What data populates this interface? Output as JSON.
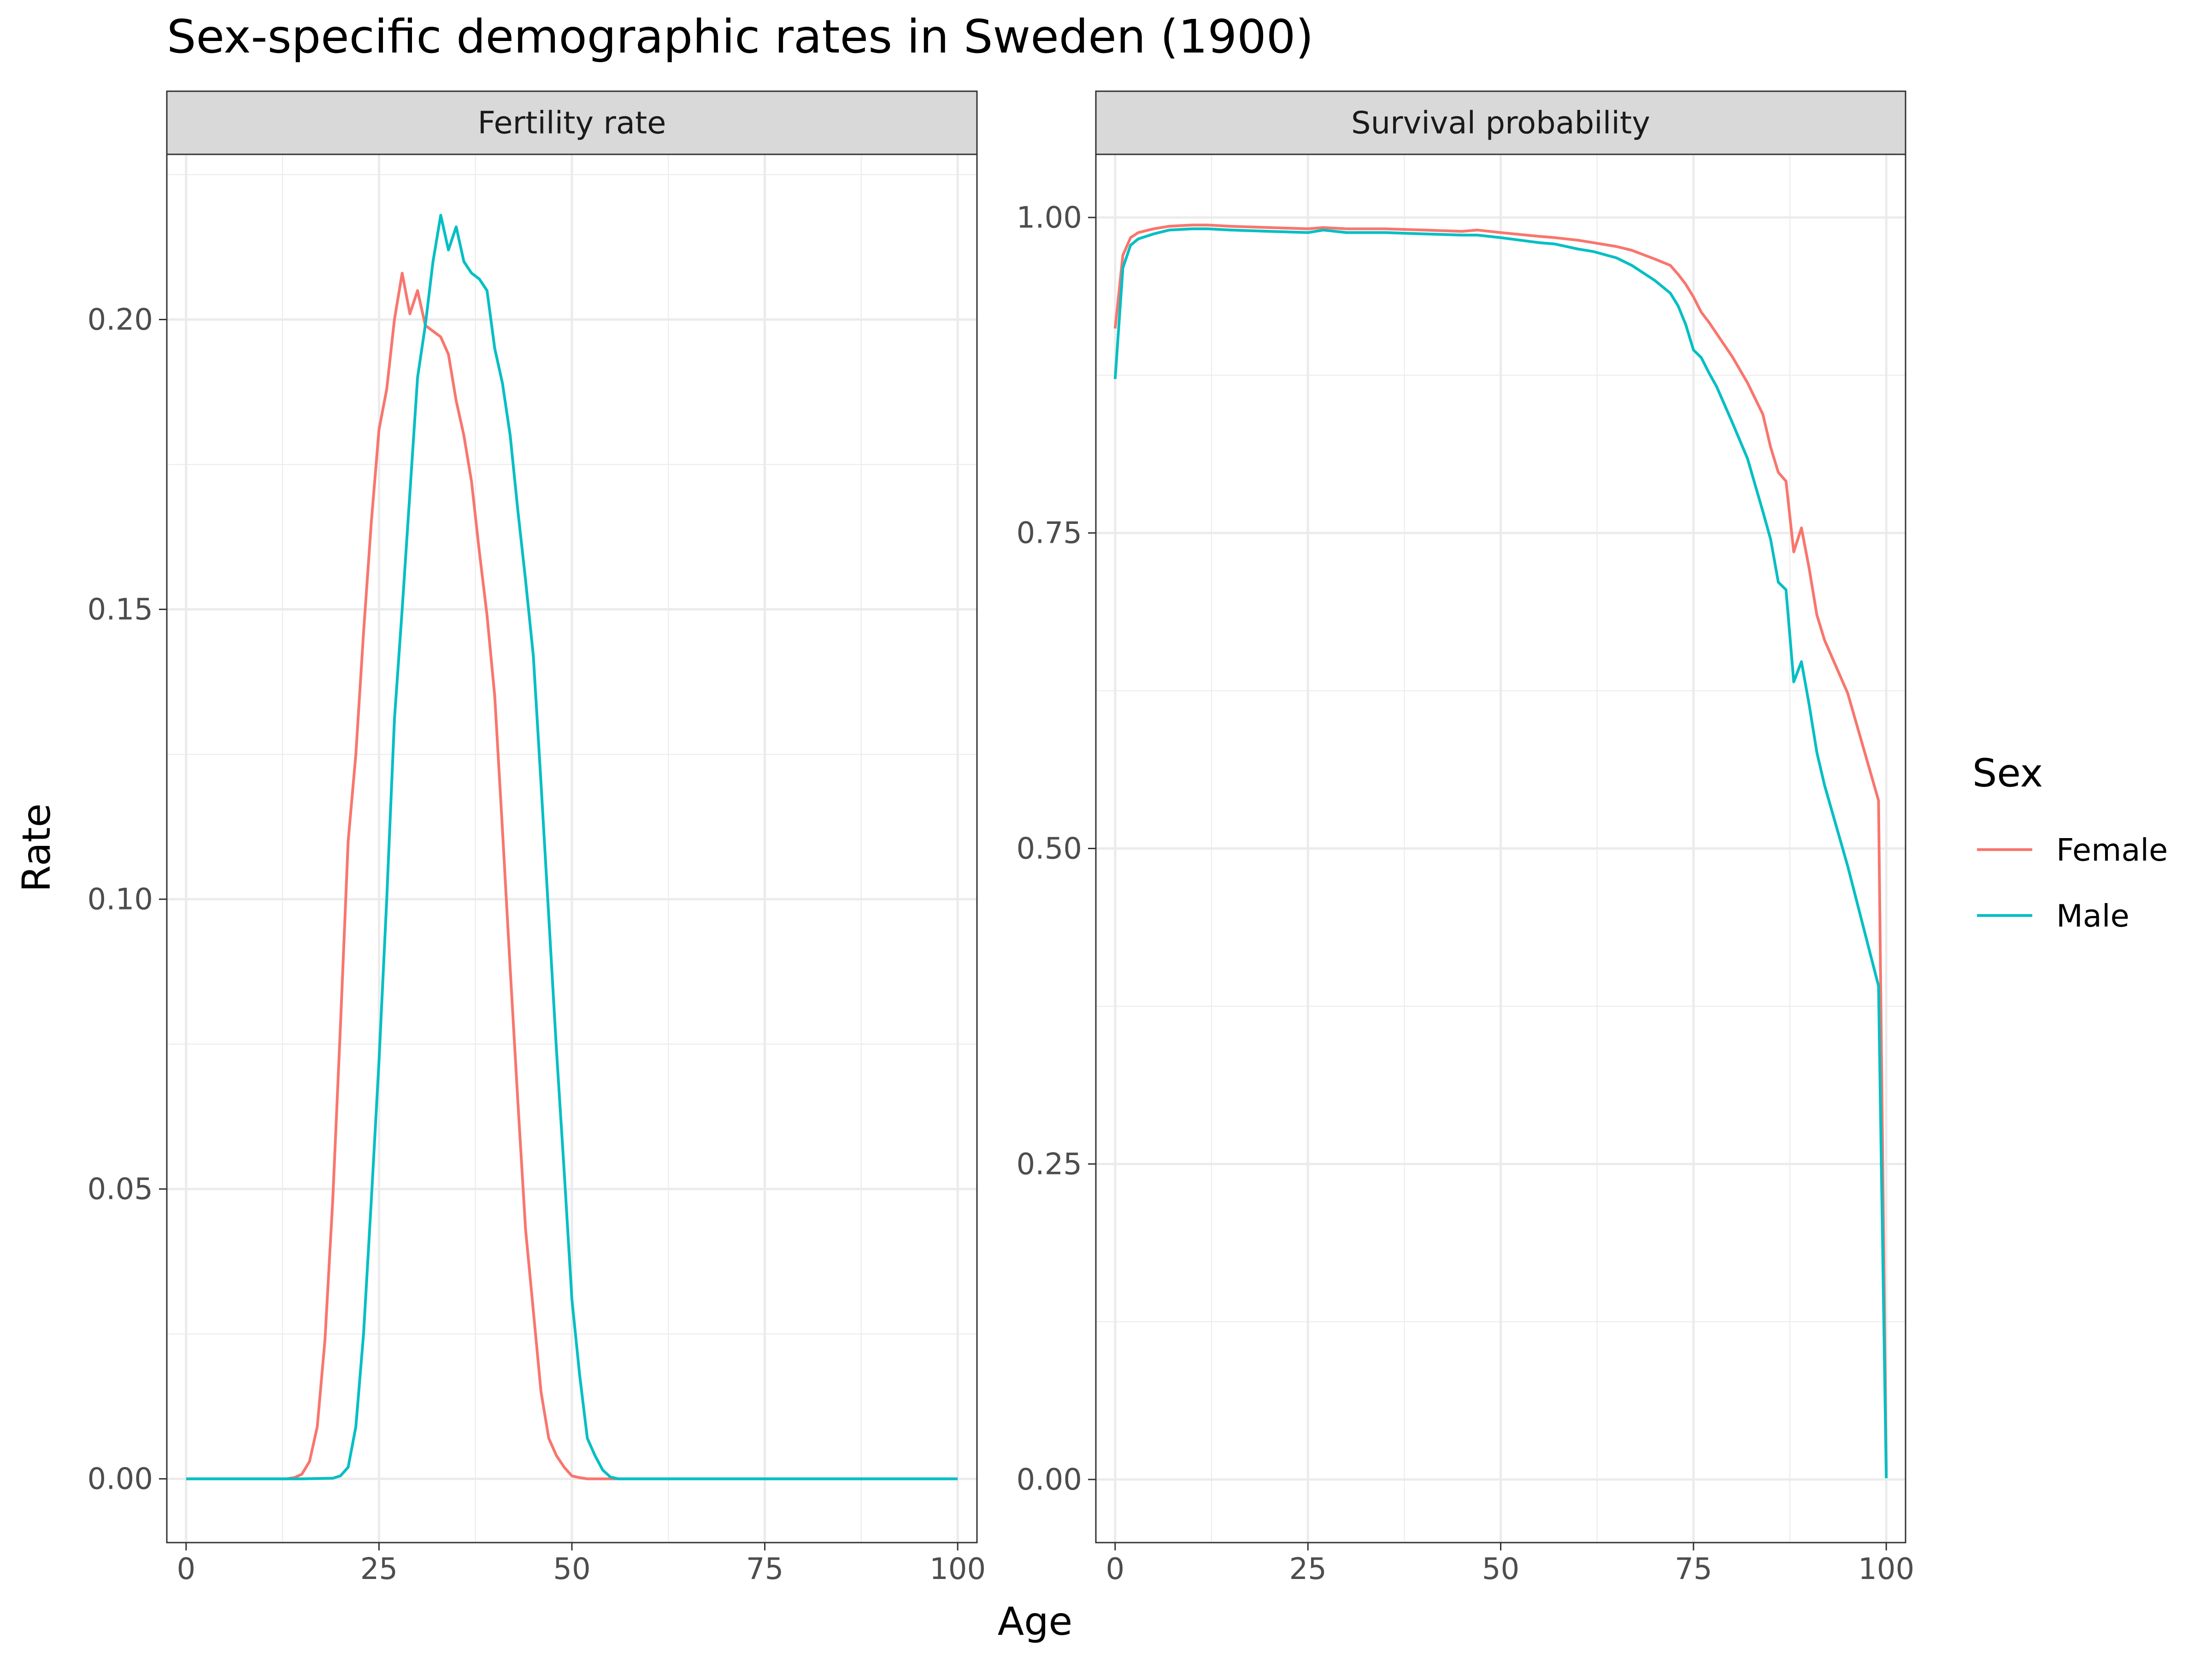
{
  "chart_data": {
    "type": "line",
    "title": "Sex-specific demographic rates in Sweden (1900)",
    "xlabel": "Age",
    "ylabel": "Rate",
    "legend": {
      "title": "Sex",
      "position": "right",
      "entries": [
        "Female",
        "Male"
      ]
    },
    "colors": {
      "Female": "#F8766D",
      "Male": "#00BFC4"
    },
    "grid": true,
    "x_ticks": [
      0,
      25,
      50,
      75,
      100
    ],
    "xlim": [
      -2.5,
      102.5
    ],
    "panels": [
      {
        "strip": "Fertility rate",
        "ylim": [
          -0.011,
          0.2285
        ],
        "y_ticks": [
          0,
          0.05,
          0.1,
          0.15,
          0.2
        ],
        "y_tick_labels": [
          "0.00",
          "0.05",
          "0.10",
          "0.15",
          "0.20"
        ],
        "series": [
          {
            "name": "Female",
            "x": [
              0,
              5,
              10,
              13,
              14,
              15,
              16,
              17,
              18,
              19,
              20,
              21,
              22,
              23,
              24,
              25,
              26,
              27,
              28,
              29,
              30,
              31,
              32,
              33,
              34,
              35,
              36,
              37,
              38,
              39,
              40,
              41,
              42,
              43,
              44,
              45,
              46,
              47,
              48,
              49,
              50,
              51,
              52,
              55,
              60,
              100
            ],
            "values": [
              0,
              0,
              0,
              0,
              0.0002,
              0.0008,
              0.003,
              0.009,
              0.024,
              0.048,
              0.078,
              0.11,
              0.125,
              0.146,
              0.165,
              0.181,
              0.188,
              0.2,
              0.208,
              0.201,
              0.205,
              0.199,
              0.198,
              0.197,
              0.194,
              0.186,
              0.18,
              0.172,
              0.16,
              0.149,
              0.135,
              0.112,
              0.088,
              0.065,
              0.043,
              0.029,
              0.015,
              0.007,
              0.004,
              0.002,
              0.0005,
              0.0002,
              0,
              0,
              0,
              0
            ]
          },
          {
            "name": "Male",
            "x": [
              0,
              5,
              10,
              15,
              19,
              20,
              21,
              22,
              23,
              24,
              25,
              26,
              27,
              28,
              29,
              30,
              31,
              32,
              33,
              34,
              35,
              36,
              37,
              38,
              39,
              40,
              41,
              42,
              43,
              44,
              45,
              46,
              47,
              48,
              49,
              50,
              51,
              52,
              53,
              54,
              55,
              56,
              60,
              100
            ],
            "values": [
              0,
              0,
              0,
              0,
              0.0001,
              0.0005,
              0.002,
              0.009,
              0.025,
              0.048,
              0.072,
              0.1,
              0.131,
              0.15,
              0.17,
              0.19,
              0.199,
              0.21,
              0.218,
              0.212,
              0.216,
              0.21,
              0.208,
              0.207,
              0.205,
              0.195,
              0.189,
              0.18,
              0.167,
              0.155,
              0.142,
              0.12,
              0.097,
              0.074,
              0.053,
              0.031,
              0.018,
              0.007,
              0.004,
              0.0015,
              0.0003,
              0,
              0,
              0
            ]
          }
        ]
      },
      {
        "strip": "Survival probability",
        "ylim": [
          -0.05,
          1.05
        ],
        "y_ticks": [
          0,
          0.25,
          0.5,
          0.75,
          1.0
        ],
        "y_tick_labels": [
          "0.00",
          "0.25",
          "0.50",
          "0.75",
          "1.00"
        ],
        "series": [
          {
            "name": "Female",
            "x": [
              0,
              1,
              2,
              3,
              5,
              7,
              10,
              12,
              15,
              20,
              25,
              27,
              30,
              35,
              40,
              45,
              47,
              50,
              55,
              57,
              60,
              62,
              65,
              67,
              70,
              72,
              73,
              74,
              75,
              76,
              77,
              78,
              80,
              82,
              84,
              85,
              86,
              87,
              88,
              89,
              90,
              91,
              92,
              95,
              99,
              100
            ],
            "values": [
              0.912,
              0.97,
              0.984,
              0.988,
              0.991,
              0.993,
              0.994,
              0.994,
              0.993,
              0.992,
              0.991,
              0.992,
              0.991,
              0.991,
              0.99,
              0.989,
              0.99,
              0.988,
              0.985,
              0.984,
              0.982,
              0.98,
              0.977,
              0.974,
              0.967,
              0.962,
              0.955,
              0.947,
              0.937,
              0.925,
              0.917,
              0.908,
              0.89,
              0.869,
              0.844,
              0.818,
              0.798,
              0.791,
              0.735,
              0.754,
              0.722,
              0.685,
              0.665,
              0.623,
              0.538,
              0.005
            ]
          },
          {
            "name": "Male",
            "x": [
              0,
              1,
              2,
              3,
              5,
              7,
              10,
              12,
              15,
              20,
              25,
              27,
              30,
              35,
              40,
              45,
              47,
              50,
              55,
              57,
              60,
              62,
              65,
              67,
              70,
              72,
              73,
              74,
              75,
              76,
              77,
              78,
              80,
              82,
              84,
              85,
              86,
              87,
              88,
              89,
              90,
              91,
              92,
              95,
              99,
              100
            ],
            "values": [
              0.872,
              0.96,
              0.978,
              0.983,
              0.987,
              0.99,
              0.991,
              0.991,
              0.99,
              0.989,
              0.988,
              0.99,
              0.988,
              0.988,
              0.987,
              0.986,
              0.986,
              0.984,
              0.98,
              0.979,
              0.975,
              0.973,
              0.968,
              0.962,
              0.95,
              0.94,
              0.93,
              0.915,
              0.895,
              0.889,
              0.877,
              0.866,
              0.838,
              0.809,
              0.767,
              0.745,
              0.711,
              0.705,
              0.632,
              0.648,
              0.614,
              0.576,
              0.55,
              0.486,
              0.391,
              0.001
            ]
          }
        ]
      }
    ]
  }
}
